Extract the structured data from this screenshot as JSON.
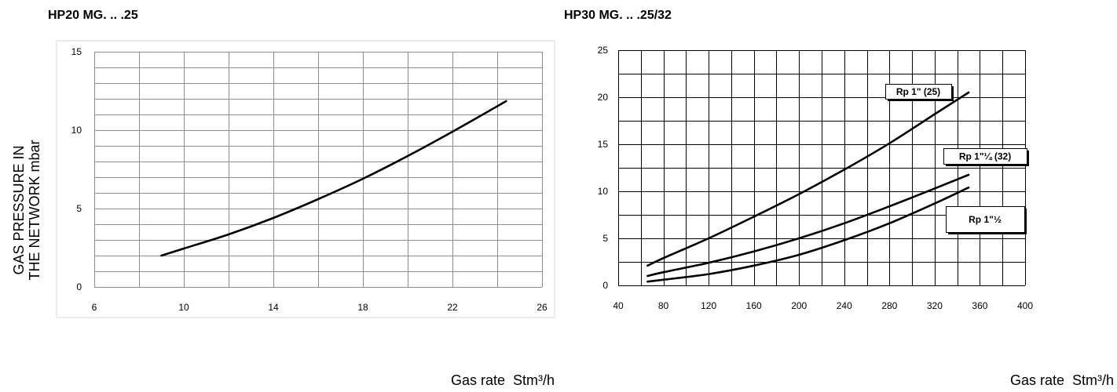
{
  "chart_data": [
    {
      "type": "line",
      "title": "HP20 MG. .. .25",
      "xlabel": "Gas rate  Stm³/h",
      "ylabel": [
        "GAS PRESSURE IN",
        "THE NETWORK mbar"
      ],
      "xlim": [
        6,
        26
      ],
      "ylim": [
        0,
        15
      ],
      "xticks": [
        6,
        10,
        14,
        18,
        22,
        26
      ],
      "yticks": [
        0,
        5,
        10,
        15
      ],
      "grid": true,
      "x_grid_step": 2,
      "y_grid_step": 1,
      "colors": {
        "line": "#000000",
        "grid": "#8c8c8c",
        "frame": "#d9d9d9"
      },
      "series": [
        {
          "x": [
            9,
            10,
            12,
            14,
            16,
            18,
            20,
            22,
            24.4
          ],
          "y": [
            2.0,
            2.45,
            3.35,
            4.4,
            5.6,
            6.9,
            8.35,
            9.9,
            11.85
          ]
        }
      ]
    },
    {
      "type": "line",
      "title": "HP30 MG. .. .25/32",
      "xlabel": "Gas rate  Stm³/h",
      "xlim": [
        40,
        400
      ],
      "ylim": [
        0,
        25
      ],
      "xticks": [
        40,
        80,
        120,
        160,
        200,
        240,
        280,
        320,
        360,
        400
      ],
      "yticks": [
        0,
        5,
        10,
        15,
        20,
        25
      ],
      "grid": true,
      "x_grid_step": 20,
      "y_grid_step": 2.5,
      "colors": {
        "line": "#000000",
        "grid": "#000000"
      },
      "series": [
        {
          "name": "Rp 1\" (25)",
          "x": [
            66,
            80,
            120,
            160,
            200,
            240,
            280,
            320,
            350
          ],
          "y": [
            2.1,
            2.9,
            5.0,
            7.3,
            9.7,
            12.3,
            15.1,
            18.2,
            20.5
          ]
        },
        {
          "name": "Rp 1\"¼ (32)",
          "x": [
            66,
            80,
            120,
            160,
            200,
            240,
            280,
            320,
            350
          ],
          "y": [
            1.0,
            1.4,
            2.4,
            3.6,
            5.0,
            6.6,
            8.4,
            10.3,
            11.75
          ]
        },
        {
          "name": "Rp 1\"½",
          "x": [
            66,
            80,
            120,
            160,
            200,
            240,
            280,
            320,
            350
          ],
          "y": [
            0.4,
            0.6,
            1.2,
            2.1,
            3.25,
            4.8,
            6.6,
            8.7,
            10.4
          ]
        }
      ]
    }
  ]
}
